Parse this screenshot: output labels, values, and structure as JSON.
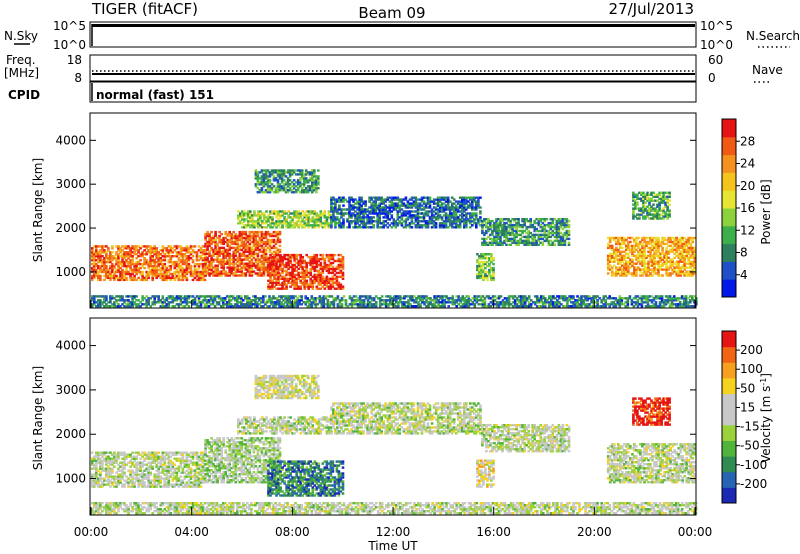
{
  "header": {
    "radar": "TIGER (fitACF)",
    "beam": "Beam 09",
    "date": "27/Jul/2013"
  },
  "top_panels": {
    "nsky_label": "N.Sky",
    "nsky_ticks": [
      "10^5",
      "10^0"
    ],
    "nsearch_label": "N.Search",
    "nsearch_ticks": [
      "10^5",
      "10^0"
    ],
    "freq_label_line1": "Freq.",
    "freq_label_line2": "[MHz]",
    "freq_ticks": [
      "18",
      "8"
    ],
    "nave_label": "Nave",
    "nave_ticks": [
      "60",
      "0"
    ],
    "cpid_label": "CPID",
    "cpid_value": "normal (fast) 151"
  },
  "chart_data": [
    {
      "type": "heatmap",
      "title": "",
      "xlabel": "",
      "ylabel": "Slant Range [km]",
      "x_ticks": [
        "00:00",
        "04:00",
        "08:00",
        "12:00",
        "16:00",
        "20:00",
        "00:00"
      ],
      "y_ticks": [
        1000,
        2000,
        3000,
        4000
      ],
      "ylim": [
        200,
        4600
      ],
      "colorbar": {
        "label": "Power [dB]",
        "ticks": [
          "4",
          "8",
          "12",
          "16",
          "20",
          "24",
          "28"
        ],
        "colors": [
          "#0018e8",
          "#2050c8",
          "#2e7f5e",
          "#3caf4a",
          "#8cd23c",
          "#e6e632",
          "#f5c31e",
          "#f5911e",
          "#f05a14",
          "#e61414"
        ]
      },
      "regions": [
        {
          "name": "early-band",
          "t_start": 0.0,
          "t_end": 4.5,
          "r_start": 800,
          "r_end": 1600,
          "level": 0.8
        },
        {
          "name": "band-rise",
          "t_start": 4.5,
          "t_end": 7.5,
          "r_start": 900,
          "r_end": 1900,
          "level": 0.85
        },
        {
          "name": "evening-patch",
          "t_start": 7.0,
          "t_end": 10.0,
          "r_start": 600,
          "r_end": 1400,
          "level": 0.9
        },
        {
          "name": "mid-layer",
          "t_start": 5.8,
          "t_end": 9.5,
          "r_start": 2000,
          "r_end": 2400,
          "level": 0.45
        },
        {
          "name": "upper-cloud",
          "t_start": 6.5,
          "t_end": 9.0,
          "r_start": 2800,
          "r_end": 3300,
          "level": 0.3
        },
        {
          "name": "day-band",
          "t_start": 9.5,
          "t_end": 15.5,
          "r_start": 2000,
          "r_end": 2700,
          "level": 0.2
        },
        {
          "name": "afternoon-band",
          "t_start": 15.5,
          "t_end": 19.0,
          "r_start": 1600,
          "r_end": 2200,
          "level": 0.3
        },
        {
          "name": "streak-16h",
          "t_start": 15.3,
          "t_end": 16.0,
          "r_start": 800,
          "r_end": 1400,
          "level": 0.4
        },
        {
          "name": "late-band",
          "t_start": 20.5,
          "t_end": 24.0,
          "r_start": 900,
          "r_end": 1800,
          "level": 0.7
        },
        {
          "name": "late-upper",
          "t_start": 21.5,
          "t_end": 23.0,
          "r_start": 2200,
          "r_end": 2800,
          "level": 0.35
        },
        {
          "name": "ground-scatter",
          "t_start": 0.0,
          "t_end": 24.0,
          "r_start": 200,
          "r_end": 450,
          "level": 0.25
        }
      ]
    },
    {
      "type": "heatmap",
      "title": "",
      "xlabel": "Time UT",
      "ylabel": "Slant Range [km]",
      "x_ticks": [
        "00:00",
        "04:00",
        "08:00",
        "12:00",
        "16:00",
        "20:00",
        "00:00"
      ],
      "y_ticks": [
        1000,
        2000,
        3000,
        4000
      ],
      "ylim": [
        200,
        4600
      ],
      "colorbar": {
        "label": "Velocity [m s^-1]",
        "unit_main": "Velocity [m s",
        "unit_exp": "-1",
        "unit_end": "]",
        "ticks": [
          "200",
          "100",
          "50",
          "15",
          "-15",
          "-50",
          "-100",
          "-200"
        ],
        "colors": [
          "#1a28b4",
          "#2864b4",
          "#2e8c50",
          "#50b43c",
          "#9ad23c",
          "#c8c8c8",
          "#c8c8c8",
          "#f5d21e",
          "#f5a01e",
          "#f06414",
          "#e61414"
        ]
      },
      "regions": [
        {
          "name": "early-band",
          "t_start": 0.0,
          "t_end": 4.5,
          "r_start": 800,
          "r_end": 1600,
          "level": 0.5
        },
        {
          "name": "band-rise",
          "t_start": 4.5,
          "t_end": 7.5,
          "r_start": 900,
          "r_end": 1900,
          "level": 0.45
        },
        {
          "name": "evening-patch",
          "t_start": 7.0,
          "t_end": 10.0,
          "r_start": 600,
          "r_end": 1400,
          "level": 0.2
        },
        {
          "name": "mid-layer",
          "t_start": 5.8,
          "t_end": 9.5,
          "r_start": 2000,
          "r_end": 2400,
          "level": 0.5
        },
        {
          "name": "upper-cloud",
          "t_start": 6.5,
          "t_end": 9.0,
          "r_start": 2800,
          "r_end": 3300,
          "level": 0.55
        },
        {
          "name": "day-band",
          "t_start": 9.5,
          "t_end": 15.5,
          "r_start": 2000,
          "r_end": 2700,
          "level": 0.5
        },
        {
          "name": "afternoon-band",
          "t_start": 15.5,
          "t_end": 19.0,
          "r_start": 1600,
          "r_end": 2200,
          "level": 0.5
        },
        {
          "name": "streak-16h",
          "t_start": 15.3,
          "t_end": 16.0,
          "r_start": 800,
          "r_end": 1400,
          "level": 0.6
        },
        {
          "name": "late-band",
          "t_start": 20.5,
          "t_end": 24.0,
          "r_start": 900,
          "r_end": 1800,
          "level": 0.5
        },
        {
          "name": "late-upper",
          "t_start": 21.5,
          "t_end": 23.0,
          "r_start": 2200,
          "r_end": 2800,
          "level": 0.95
        },
        {
          "name": "ground-scatter",
          "t_start": 0.0,
          "t_end": 24.0,
          "r_start": 200,
          "r_end": 450,
          "level": 0.5
        }
      ]
    }
  ]
}
